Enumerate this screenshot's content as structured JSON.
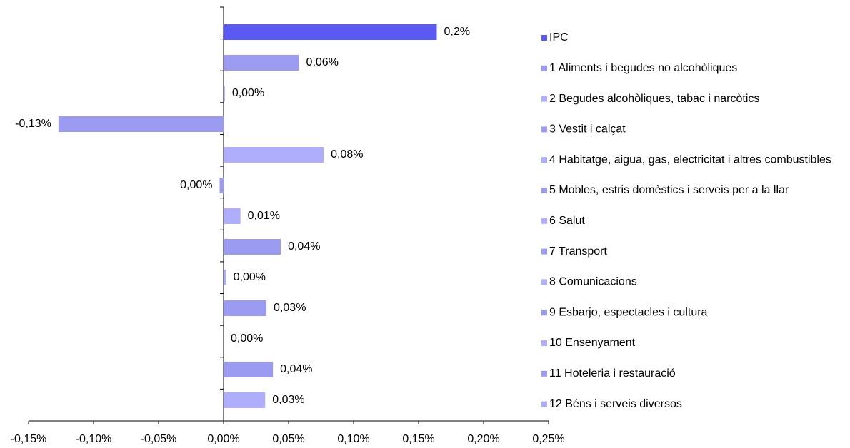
{
  "chart_data": {
    "type": "bar",
    "orientation": "horizontal",
    "categories": [
      "IPC",
      "1 Aliments i begudes no alcohòliques",
      "2 Begudes alcohòliques, tabac i narcòtics",
      "3 Vestit i calçat",
      "4 Habitatge, aigua, gas, electricitat i altres combustibles",
      "5 Mobles, estris domèstics i serveis per a la llar",
      "6 Salut",
      "7 Transport",
      "8 Comunicacions",
      "9 Esbarjo, espectacles i cultura",
      "10 Ensenyament",
      "11 Hoteleria i restauració",
      "12 Béns i serveis diversos"
    ],
    "values": [
      0.164,
      0.058,
      0.001,
      -0.127,
      0.077,
      -0.003,
      0.013,
      0.044,
      0.002,
      0.033,
      0,
      0.038,
      0.032
    ],
    "value_labels": [
      "0,2%",
      "0,06%",
      "0,00%",
      "-0,13%",
      "0,08%",
      "0,00%",
      "0,01%",
      "0,04%",
      "0,00%",
      "0,03%",
      "0,00%",
      "0,04%",
      "0,03%"
    ],
    "colors": [
      "#5a5af2",
      "#9b9bf2",
      "#aeaefc",
      "#9b9bf2",
      "#aeaefc",
      "#9b9bf2",
      "#aeaefc",
      "#9b9bf2",
      "#aeaefc",
      "#9b9bf2",
      "#aeaefc",
      "#9b9bf2",
      "#aeaefc"
    ],
    "xlim": [
      -0.15,
      0.25
    ],
    "xticks": [
      {
        "value": -0.15,
        "label": "-0,15%"
      },
      {
        "value": -0.1,
        "label": "-0,10%"
      },
      {
        "value": -0.05,
        "label": "-0,05%"
      },
      {
        "value": 0,
        "label": "0,00%"
      },
      {
        "value": 0.05,
        "label": "0,05%"
      },
      {
        "value": 0.1,
        "label": "0,10%"
      },
      {
        "value": 0.15,
        "label": "0,15%"
      },
      {
        "value": 0.2,
        "label": "0,20%"
      },
      {
        "value": 0.25,
        "label": "0,25%"
      }
    ],
    "legend": "right"
  }
}
